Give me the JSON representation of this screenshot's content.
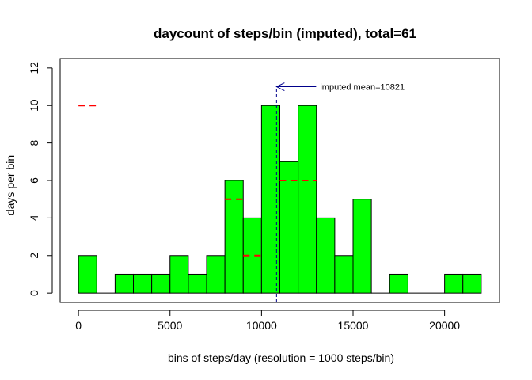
{
  "chart_data": {
    "type": "bar",
    "title": "daycount of steps/bin (imputed), total=61",
    "xlabel": "bins of steps/day (resolution = 1000 steps/bin)",
    "ylabel": "days per bin",
    "xlim": [
      -1000,
      23000
    ],
    "ylim": [
      -0.5,
      12.5
    ],
    "xticks": [
      0,
      5000,
      10000,
      15000,
      20000
    ],
    "yticks": [
      0,
      2,
      4,
      6,
      8,
      10,
      12
    ],
    "bins": [
      {
        "start": 0,
        "end": 1000,
        "count": 2
      },
      {
        "start": 1000,
        "end": 2000,
        "count": 0
      },
      {
        "start": 2000,
        "end": 3000,
        "count": 1
      },
      {
        "start": 3000,
        "end": 4000,
        "count": 1
      },
      {
        "start": 4000,
        "end": 5000,
        "count": 1
      },
      {
        "start": 5000,
        "end": 6000,
        "count": 2
      },
      {
        "start": 6000,
        "end": 7000,
        "count": 1
      },
      {
        "start": 7000,
        "end": 8000,
        "count": 2
      },
      {
        "start": 8000,
        "end": 9000,
        "count": 6
      },
      {
        "start": 9000,
        "end": 10000,
        "count": 4
      },
      {
        "start": 10000,
        "end": 11000,
        "count": 10
      },
      {
        "start": 11000,
        "end": 12000,
        "count": 7
      },
      {
        "start": 12000,
        "end": 13000,
        "count": 10
      },
      {
        "start": 13000,
        "end": 14000,
        "count": 4
      },
      {
        "start": 14000,
        "end": 15000,
        "count": 2
      },
      {
        "start": 15000,
        "end": 16000,
        "count": 5
      },
      {
        "start": 16000,
        "end": 17000,
        "count": 0
      },
      {
        "start": 17000,
        "end": 18000,
        "count": 1
      },
      {
        "start": 18000,
        "end": 19000,
        "count": 0
      },
      {
        "start": 19000,
        "end": 20000,
        "count": 0
      },
      {
        "start": 20000,
        "end": 21000,
        "count": 1
      },
      {
        "start": 21000,
        "end": 22000,
        "count": 1
      }
    ],
    "original_counts": [
      {
        "start": 0,
        "end": 1000,
        "count": 10
      },
      {
        "start": 8000,
        "end": 9000,
        "count": 5
      },
      {
        "start": 9000,
        "end": 10000,
        "count": 2
      },
      {
        "start": 11000,
        "end": 13000,
        "count": 6
      }
    ],
    "mean_line": {
      "x": 10821,
      "label": "imputed mean=10821",
      "arrow_y": 11
    },
    "colors": {
      "bar_fill": "#00ff00",
      "bar_stroke": "#000000",
      "original_dash": "#ff0000",
      "mean_line": "#00008b"
    }
  }
}
